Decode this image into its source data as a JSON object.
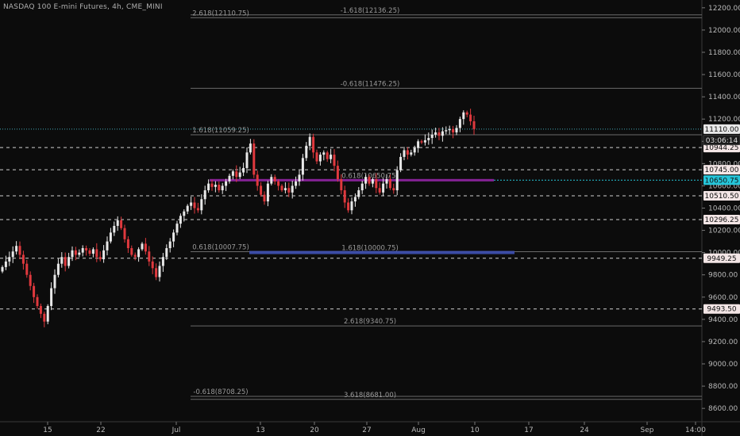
{
  "header": {
    "title": "NASDAQ 100 E-mini Futures, 4h, CME_MINI"
  },
  "colors": {
    "background": "#0c0c0c",
    "up": "#e8e8e8",
    "down": "#e0393e",
    "dashed_level": "#d0d0d0",
    "fib_line": "#6a6a6a",
    "purple_zone": "#9c27b0",
    "blue_zone": "#3f51b5",
    "teal": "#26c6da",
    "current_price": "#4dd0e1"
  },
  "chart_data": {
    "type": "candlestick",
    "title": "NASDAQ 100 E-mini Futures, 4h, CME_MINI",
    "ylim": [
      8500,
      12300
    ],
    "y_ticks": [
      8600,
      8800,
      9000,
      9200,
      9400,
      9600,
      9800,
      10000,
      10200,
      10400,
      10600,
      10800,
      11000,
      11200,
      11400,
      11600,
      11800,
      12000,
      12200
    ],
    "y_tick_labels": [
      "8600.00",
      "8800.00",
      "9000.00",
      "9200.00",
      "9400.00",
      "9600.00",
      "9800.00",
      "10000.00",
      "10200.00",
      "10400.00",
      "10600.00",
      "10800.00",
      "11000.00",
      "11200.00",
      "11400.00",
      "11600.00",
      "11800.00",
      "12000.00",
      "12200.00"
    ],
    "x_ticks": [
      "15",
      "22",
      "Jul",
      "13",
      "20",
      "27",
      "Aug",
      "10",
      "17",
      "24",
      "Sep",
      "14:00"
    ],
    "close_path": [
      9870,
      9920,
      9960,
      10010,
      10060,
      9980,
      9900,
      9800,
      9700,
      9600,
      9520,
      9450,
      9380,
      9520,
      9680,
      9800,
      9900,
      9960,
      9880,
      9960,
      10020,
      9980,
      10000,
      10040,
      10020,
      9990,
      10030,
      9960,
      9940,
      10020,
      10100,
      10180,
      10240,
      10290,
      10220,
      10120,
      10040,
      9980,
      9960,
      10030,
      10080,
      10010,
      9920,
      9860,
      9780,
      9880,
      9960,
      10040,
      10100,
      10180,
      10260,
      10330,
      10370,
      10420,
      10450,
      10400,
      10380,
      10480,
      10560,
      10620,
      10590,
      10610,
      10560,
      10600,
      10640,
      10690,
      10730,
      10680,
      10720,
      10760,
      10900,
      10980,
      10700,
      10600,
      10520,
      10460,
      10620,
      10680,
      10640,
      10600,
      10560,
      10580,
      10540,
      10600,
      10640,
      10700,
      10850,
      10960,
      11040,
      10900,
      10820,
      10880,
      10900,
      10840,
      10880,
      10780,
      10660,
      10560,
      10450,
      10380,
      10460,
      10500,
      10560,
      10620,
      10680,
      10620,
      10660,
      10580,
      10540,
      10620,
      10660,
      10580,
      10560,
      10740,
      10860,
      10920,
      10880,
      10900,
      10940,
      11000,
      10990,
      11010,
      11030,
      11060,
      11080,
      11050,
      11090,
      11100,
      11110,
      11080,
      11120,
      11200,
      11260,
      11240,
      11180,
      11110
    ],
    "price_levels": [
      {
        "value": 10944.25,
        "label": "10944.25",
        "style": "dashed"
      },
      {
        "value": 10745.0,
        "label": "10745.00",
        "style": "dashed"
      },
      {
        "value": 10510.5,
        "label": "10510.50",
        "style": "dashed"
      },
      {
        "value": 10296.25,
        "label": "10296.25",
        "style": "dashed"
      },
      {
        "value": 9949.25,
        "label": "9949.25",
        "style": "dashed"
      },
      {
        "value": 9493.5,
        "label": "9493.50",
        "style": "dashed"
      }
    ],
    "current_price": {
      "value": 11110.0,
      "label": "11110.00",
      "countdown": "03:06:14"
    },
    "teal_level": {
      "value": 10650.75,
      "label": "10650.75"
    },
    "fib_lines": [
      {
        "value": 12136.25,
        "label": "-1.618(12136.25)",
        "label_pos": "center"
      },
      {
        "value": 12110.75,
        "label": "2.618(12110.75)",
        "label_pos": "left"
      },
      {
        "value": 11476.25,
        "label": "-0.618(11476.25)",
        "label_pos": "center"
      },
      {
        "value": 11059.25,
        "label": "1.618(11059.25)",
        "label_pos": "left"
      },
      {
        "value": 10650.75,
        "label": "0.618(10650.75)",
        "label_pos": "center",
        "zone": "purple"
      },
      {
        "value": 10007.75,
        "label": "0.618(10007.75)",
        "label_pos": "left"
      },
      {
        "value": 10000.75,
        "label": "1.618(10000.75)",
        "label_pos": "center",
        "zone": "blue"
      },
      {
        "value": 9340.75,
        "label": "2.618(9340.75)",
        "label_pos": "center"
      },
      {
        "value": 8708.25,
        "label": "-0.618(8708.25)",
        "label_pos": "left"
      },
      {
        "value": 8681.0,
        "label": "3.618(8681.00)",
        "label_pos": "center"
      }
    ]
  }
}
